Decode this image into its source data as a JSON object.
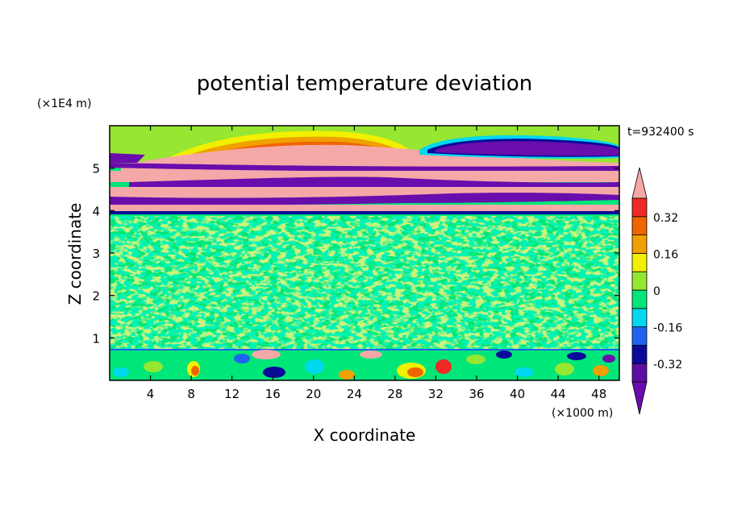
{
  "chart_data": {
    "type": "heatmap",
    "title": "potential temperature deviation",
    "xlabel": "X coordinate",
    "ylabel": "Z coordinate",
    "x_unit": "(×1000 m)",
    "y_unit": "(×1E4 m)",
    "time_label": "t=932400 s",
    "xlim": [
      0,
      50
    ],
    "ylim": [
      0,
      6
    ],
    "x_ticks": [
      4,
      8,
      12,
      16,
      20,
      24,
      28,
      32,
      36,
      40,
      44,
      48
    ],
    "y_ticks": [
      1,
      2,
      3,
      4,
      5
    ],
    "colorbar": {
      "levels": [
        -0.4,
        -0.32,
        -0.24,
        -0.16,
        -0.08,
        0,
        0.08,
        0.16,
        0.24,
        0.32,
        0.4
      ],
      "tick_labels": [
        "0.32",
        "0.16",
        "0",
        "-0.16",
        "-0.32"
      ],
      "tick_values": [
        0.32,
        0.16,
        0,
        -0.16,
        -0.32
      ],
      "colors_low_to_high": [
        "#6a0dad",
        "#5b0fa0",
        "#0a0a9a",
        "#1e64f0",
        "#00d8f0",
        "#00e678",
        "#96e632",
        "#f0f000",
        "#f0a000",
        "#f06400",
        "#f02828",
        "#f5a8a8"
      ],
      "extend": "both"
    },
    "regions": [
      {
        "name": "upper-inversion-layers",
        "z_range": [
          3.9,
          6.0
        ],
        "description_values": "alternating bands of +0.4 and -0.4 deviation"
      },
      {
        "name": "mid-troposphere",
        "z_range": [
          0.75,
          3.9
        ],
        "description_values": "mostly 0 to +0.08"
      },
      {
        "name": "boundary-layer",
        "z_range": [
          0,
          0.75
        ],
        "description_values": "mixed -0.4 to +0.4 turbulent eddies"
      }
    ]
  }
}
